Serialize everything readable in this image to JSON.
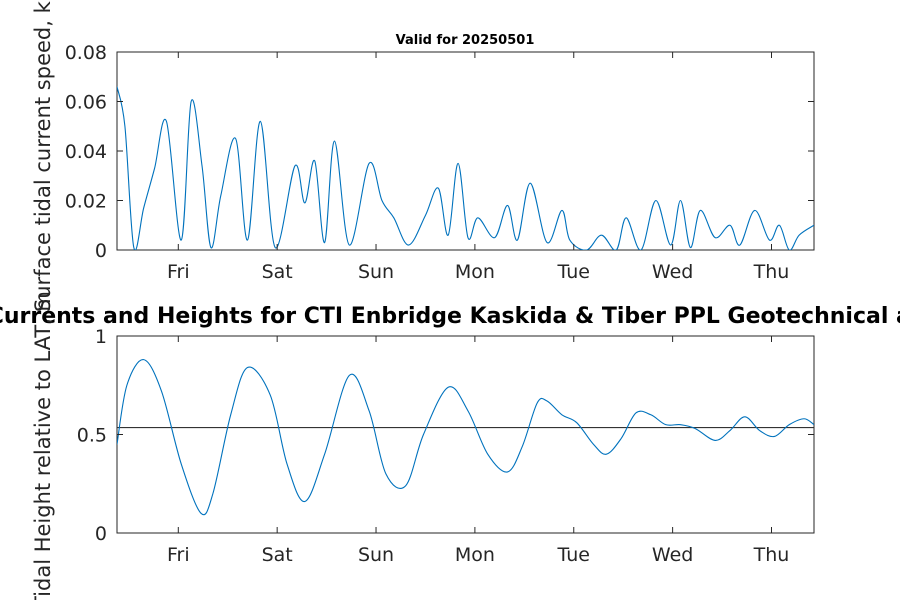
{
  "chart_data": [
    {
      "type": "line",
      "title": "Valid for 20250501",
      "ylabel": "Surface tidal current speed, kn",
      "xlabel": "",
      "xlim": [
        0,
        7.05
      ],
      "ylim": [
        0,
        0.08
      ],
      "yticks": [
        0,
        0.02,
        0.04,
        0.06,
        0.08
      ],
      "ytick_labels": [
        "0",
        "0.02",
        "0.04",
        "0.06",
        "0.08"
      ],
      "xticks": [
        0.62,
        1.62,
        2.62,
        3.62,
        4.62,
        5.62,
        6.62
      ],
      "xtick_labels": [
        "Fri",
        "Sat",
        "Sun",
        "Mon",
        "Tue",
        "Wed",
        "Thu"
      ],
      "grid": false,
      "series": [
        {
          "color": "#0072BD",
          "x": [
            0,
            0.08,
            0.17,
            0.27,
            0.38,
            0.5,
            0.65,
            0.75,
            0.86,
            0.95,
            1.05,
            1.2,
            1.32,
            1.45,
            1.6,
            1.8,
            1.9,
            2.0,
            2.1,
            2.2,
            2.35,
            2.55,
            2.68,
            2.8,
            2.95,
            3.12,
            3.25,
            3.35,
            3.45,
            3.55,
            3.65,
            3.82,
            3.95,
            4.05,
            4.18,
            4.35,
            4.5,
            4.58,
            4.75,
            4.9,
            5.05,
            5.15,
            5.3,
            5.45,
            5.6,
            5.7,
            5.8,
            5.9,
            6.05,
            6.2,
            6.3,
            6.45,
            6.6,
            6.7,
            6.8,
            6.9,
            7.05
          ],
          "y": [
            0.066,
            0.05,
            0.001,
            0.017,
            0.033,
            0.052,
            0.004,
            0.06,
            0.034,
            0.001,
            0.022,
            0.045,
            0.004,
            0.052,
            0.001,
            0.034,
            0.019,
            0.036,
            0.003,
            0.044,
            0.002,
            0.035,
            0.02,
            0.013,
            0.002,
            0.014,
            0.025,
            0.006,
            0.035,
            0.005,
            0.013,
            0.005,
            0.018,
            0.004,
            0.027,
            0.003,
            0.016,
            0.004,
            0.0,
            0.006,
            0.0,
            0.013,
            0.0,
            0.02,
            0.002,
            0.02,
            0.001,
            0.016,
            0.005,
            0.01,
            0.002,
            0.016,
            0.004,
            0.01,
            0.0,
            0.006,
            0.01
          ]
        }
      ]
    },
    {
      "type": "line",
      "title": "Currents and Heights for CTI Enbridge  Kaskida & Tiber PPL Geotechnical and",
      "ylabel": "Tidal Height relative to LAT, m",
      "xlabel": "",
      "xlim": [
        0,
        7.05
      ],
      "ylim": [
        0,
        1
      ],
      "yticks": [
        0,
        0.5,
        1
      ],
      "ytick_labels": [
        "0",
        "0.5",
        "1"
      ],
      "xticks": [
        0.62,
        1.62,
        2.62,
        3.62,
        4.62,
        5.62,
        6.62
      ],
      "xtick_labels": [
        "Fri",
        "Sat",
        "Sun",
        "Mon",
        "Tue",
        "Wed",
        "Thu"
      ],
      "grid": false,
      "reference_line": 0.535,
      "series": [
        {
          "color": "#0072BD",
          "x": [
            0,
            0.1,
            0.27,
            0.45,
            0.65,
            0.85,
            0.97,
            1.15,
            1.32,
            1.55,
            1.72,
            1.9,
            2.1,
            2.35,
            2.55,
            2.72,
            2.92,
            3.1,
            3.35,
            3.55,
            3.75,
            3.95,
            4.1,
            4.25,
            4.35,
            4.5,
            4.65,
            4.82,
            4.95,
            5.1,
            5.25,
            5.4,
            5.55,
            5.7,
            5.85,
            6.05,
            6.2,
            6.35,
            6.5,
            6.65,
            6.8,
            6.95,
            7.05
          ],
          "y": [
            0.45,
            0.75,
            0.88,
            0.72,
            0.35,
            0.1,
            0.2,
            0.6,
            0.84,
            0.7,
            0.35,
            0.16,
            0.4,
            0.8,
            0.62,
            0.3,
            0.24,
            0.5,
            0.74,
            0.62,
            0.4,
            0.31,
            0.44,
            0.66,
            0.67,
            0.6,
            0.56,
            0.45,
            0.4,
            0.48,
            0.61,
            0.6,
            0.55,
            0.55,
            0.53,
            0.47,
            0.52,
            0.59,
            0.52,
            0.49,
            0.55,
            0.58,
            0.55
          ]
        }
      ]
    }
  ]
}
